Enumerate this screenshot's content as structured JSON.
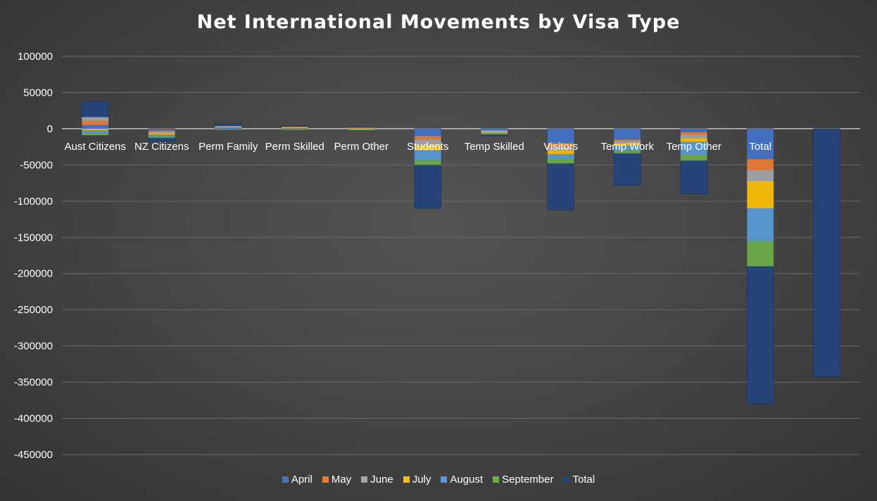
{
  "chart_data": {
    "type": "bar",
    "title": "Net International Movements by Visa Type",
    "xlabel": "",
    "ylabel": "",
    "ylim": [
      -450000,
      100000
    ],
    "yticks": [
      100000,
      50000,
      0,
      -50000,
      -100000,
      -150000,
      -200000,
      -250000,
      -300000,
      -350000,
      -400000,
      -450000
    ],
    "grid": true,
    "legend_position": "bottom",
    "stacked": true,
    "categories": [
      "Aust Citizens",
      "NZ Citizens",
      "Perm Family",
      "Perm Skilled",
      "Perm Other",
      "Students",
      "Temp Skilled",
      "Visitors",
      "Temp Work",
      "Temp Other",
      "Total",
      ""
    ],
    "series": [
      {
        "name": "April",
        "color": "#4472C4",
        "values": [
          5000,
          -3000,
          1000,
          1000,
          500,
          -10000,
          -2000,
          -20000,
          -15000,
          -5000,
          -42000,
          null
        ]
      },
      {
        "name": "May",
        "color": "#ED7D31",
        "values": [
          6000,
          -1500,
          1000,
          500,
          500,
          -5000,
          -1000,
          -5000,
          -2000,
          -3000,
          -15000,
          null
        ]
      },
      {
        "name": "June",
        "color": "#A5A5A5",
        "values": [
          5000,
          -1500,
          1000,
          500,
          500,
          -8000,
          -1000,
          -5000,
          -3000,
          -5000,
          -15000,
          null
        ]
      },
      {
        "name": "July",
        "color": "#FFC000",
        "values": [
          -2000,
          -2000,
          500,
          500,
          -500,
          -7000,
          -1500,
          -5000,
          -3000,
          -5000,
          -38000,
          null
        ]
      },
      {
        "name": "August",
        "color": "#5B9BD5",
        "values": [
          -4000,
          -2500,
          -500,
          -500,
          -500,
          -13000,
          -1500,
          -6000,
          -7000,
          -18000,
          -45000,
          null
        ]
      },
      {
        "name": "September",
        "color": "#70AD47",
        "values": [
          -3000,
          -2000,
          -500,
          -500,
          -500,
          -7000,
          -1000,
          -7000,
          -4000,
          -8000,
          -35000,
          null
        ]
      },
      {
        "name": "Total",
        "color": "#264478",
        "values": [
          38000,
          -17000,
          7000,
          4000,
          2000,
          -110000,
          -10000,
          -112000,
          -78000,
          -90000,
          -380000,
          -343000
        ]
      }
    ]
  }
}
